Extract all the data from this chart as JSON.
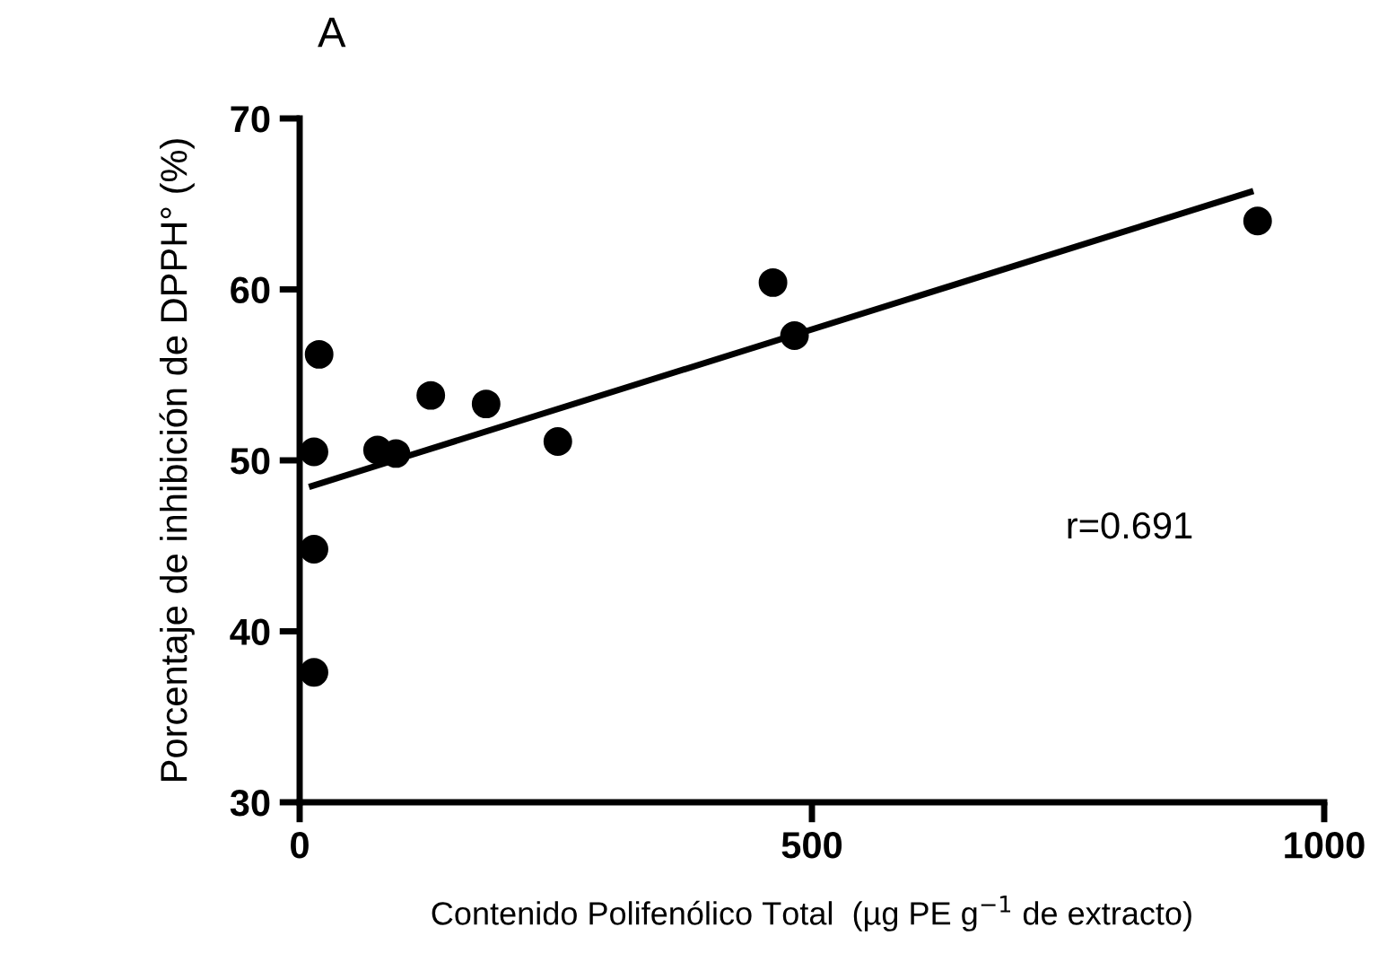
{
  "chart_data": {
    "type": "scatter",
    "xlabel": "Contenido Polifenólico Total  (µg PE g$^{−1}$ de extracto)",
    "ylabel": "Porcentaje de inhibición de DPPH° (%)",
    "annotations": [
      "A",
      "r=0.691"
    ],
    "xlim": [
      0,
      1000
    ],
    "xticks": [
      0,
      500,
      1000
    ],
    "ylim": [
      30,
      70
    ],
    "yticks": [
      30,
      40,
      50,
      60,
      70
    ],
    "grid": false,
    "series": [
      {
        "marker": "circle",
        "color": "#000000",
        "x": [
          14,
          14,
          14,
          19,
          76,
          94,
          128,
          182,
          252,
          462,
          483,
          935
        ],
        "values": [
          37.6,
          44.8,
          50.5,
          56.2,
          50.6,
          50.4,
          53.8,
          53.3,
          51.1,
          60.4,
          57.3,
          64.0
        ]
      },
      {
        "type": "line",
        "color": "#000000",
        "line_style": "solid",
        "marker": "none",
        "x": [
          12,
          928
        ],
        "values": [
          48.5,
          65.7
        ]
      }
    ]
  }
}
